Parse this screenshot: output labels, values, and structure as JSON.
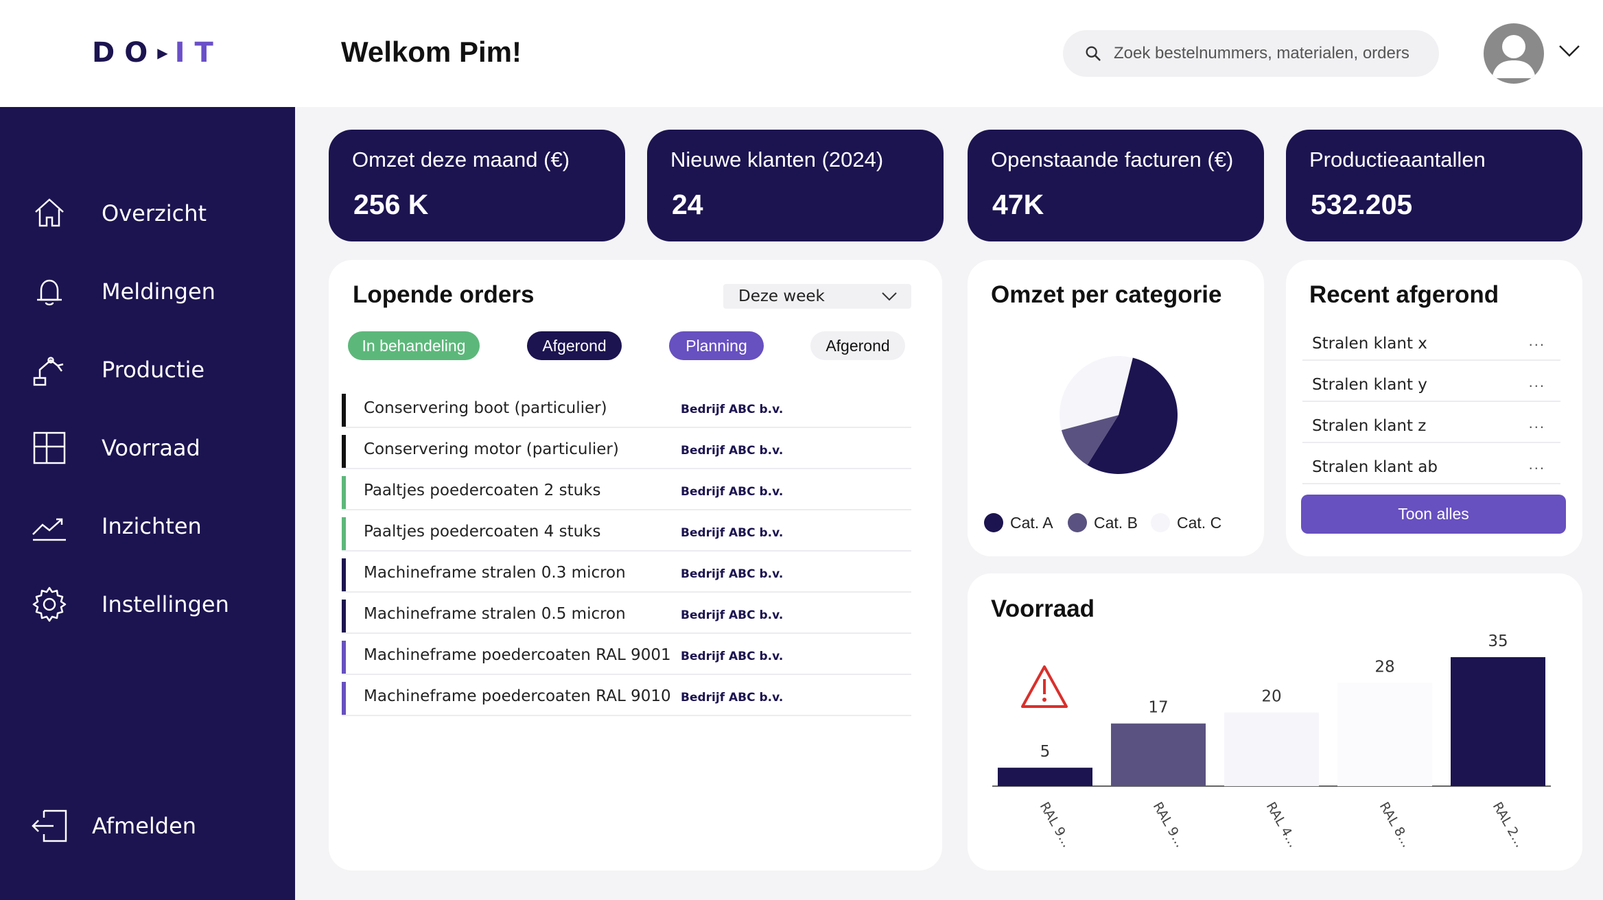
{
  "brand": {
    "logo_do": "DO",
    "logo_it": "IT"
  },
  "header": {
    "welcome": "Welkom Pim!",
    "search_placeholder": "Zoek bestelnummers, materialen, orders"
  },
  "sidebar": {
    "items": [
      {
        "label": "Overzicht",
        "icon": "home-icon"
      },
      {
        "label": "Meldingen",
        "icon": "bell-icon"
      },
      {
        "label": "Productie",
        "icon": "robot-arm-icon"
      },
      {
        "label": "Voorraad",
        "icon": "grid-icon"
      },
      {
        "label": "Inzichten",
        "icon": "trend-icon"
      },
      {
        "label": "Instellingen",
        "icon": "gear-icon"
      }
    ],
    "logout": "Afmelden"
  },
  "kpis": [
    {
      "title": "Omzet deze maand (€)",
      "value": "256 K"
    },
    {
      "title": "Nieuwe klanten (2024)",
      "value": "24"
    },
    {
      "title": "Openstaande facturen (€)",
      "value": "47K"
    },
    {
      "title": "Productieaantallen",
      "value": "532.205"
    }
  ],
  "orders": {
    "title": "Lopende orders",
    "period": "Deze week",
    "chips": [
      {
        "label": "In behandeling",
        "bg": "#5cb87a",
        "fg": "#ffffff"
      },
      {
        "label": "Afgerond",
        "bg": "#1c1450",
        "fg": "#ffffff"
      },
      {
        "label": "Planning",
        "bg": "#6750c0",
        "fg": "#ffffff"
      },
      {
        "label": "Afgerond",
        "bg": "#f1f1f4",
        "fg": "#111111"
      }
    ],
    "rows": [
      {
        "name": "Conservering boot (particulier)",
        "client": "Bedrijf ABC b.v.",
        "color": "#111111"
      },
      {
        "name": "Conservering motor (particulier)",
        "client": "Bedrijf ABC b.v.",
        "color": "#111111"
      },
      {
        "name": "Paaltjes poedercoaten 2 stuks",
        "client": "Bedrijf ABC b.v.",
        "color": "#5cb87a"
      },
      {
        "name": "Paaltjes poedercoaten 4 stuks",
        "client": "Bedrijf ABC b.v.",
        "color": "#5cb87a"
      },
      {
        "name": "Machineframe stralen 0.3 micron",
        "client": "Bedrijf ABC b.v.",
        "color": "#1c1450"
      },
      {
        "name": "Machineframe stralen 0.5 micron",
        "client": "Bedrijf ABC b.v.",
        "color": "#1c1450"
      },
      {
        "name": "Machineframe poedercoaten RAL 9001",
        "client": "Bedrijf ABC b.v.",
        "color": "#6750c0"
      },
      {
        "name": "Machineframe poedercoaten RAL 9010",
        "client": "Bedrijf ABC b.v.",
        "color": "#6750c0"
      }
    ]
  },
  "category": {
    "title": "Omzet per categorie",
    "chart_data": {
      "type": "pie",
      "categories": [
        "Cat. A",
        "Cat. B",
        "Cat. C"
      ],
      "values": [
        55,
        12,
        33
      ],
      "colors": [
        "#1c1450",
        "#5a5280",
        "#f6f5fa"
      ],
      "legend": "bottom"
    }
  },
  "recent": {
    "title": "Recent afgerond",
    "items": [
      "Stralen klant x",
      "Stralen klant y",
      "Stralen klant z",
      "Stralen klant ab"
    ],
    "more": "...",
    "button": "Toon alles"
  },
  "stock": {
    "title": "Voorraad",
    "chart_data": {
      "type": "bar",
      "categories": [
        "RAL 9...",
        "RAL 9...",
        "RAL 4...",
        "RAL 8...",
        "RAL 2..."
      ],
      "values": [
        5,
        17,
        20,
        28,
        35
      ],
      "colors": [
        "#1c1450",
        "#5a5280",
        "#f6f5fa",
        "#fbfbfd",
        "#1c1450"
      ],
      "ylim": [
        0,
        35
      ],
      "grid": false,
      "warning_category": 0,
      "warning_icon": "warning-icon",
      "warning_color": "#d9302c"
    }
  }
}
